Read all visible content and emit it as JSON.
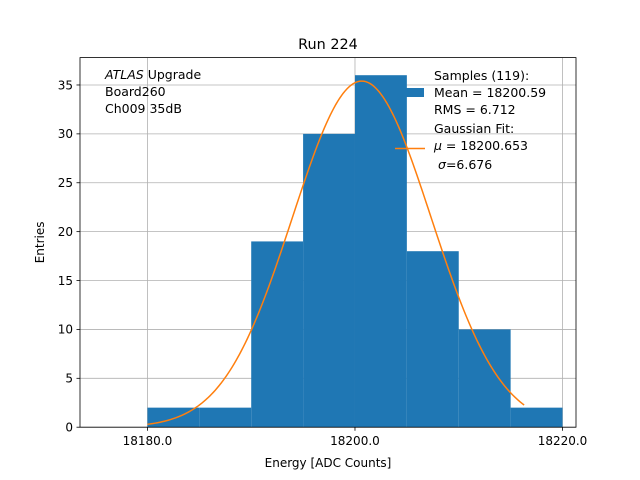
{
  "chart_data": {
    "type": "bar",
    "title": "Run 224",
    "xlabel": "Energy [ADC Counts]",
    "ylabel": "Entries",
    "xlim": [
      18173.5,
      18221.3
    ],
    "ylim": [
      0,
      37.8
    ],
    "x_ticks": [
      18180,
      18200,
      18220
    ],
    "x_tick_labels": [
      "18180.0",
      "18200.0",
      "18220.0"
    ],
    "y_ticks": [
      0,
      5,
      10,
      15,
      20,
      25,
      30,
      35
    ],
    "y_tick_labels": [
      "0",
      "5",
      "10",
      "15",
      "20",
      "25",
      "30",
      "35"
    ],
    "grid": true,
    "bins": [
      {
        "x0": 18180,
        "x1": 18185,
        "value": 2
      },
      {
        "x0": 18185,
        "x1": 18190,
        "value": 2
      },
      {
        "x0": 18190,
        "x1": 18195,
        "value": 19
      },
      {
        "x0": 18195,
        "x1": 18200,
        "value": 30
      },
      {
        "x0": 18200,
        "x1": 18205,
        "value": 36
      },
      {
        "x0": 18205,
        "x1": 18210,
        "value": 18
      },
      {
        "x0": 18210,
        "x1": 18215,
        "value": 10
      },
      {
        "x0": 18215,
        "x1": 18220,
        "value": 2
      }
    ],
    "fit": {
      "mu": 18200.653,
      "sigma": 6.676,
      "amplitude": 35.4,
      "x_start": 18180,
      "x_end": 18216.3
    },
    "colors": {
      "histogram": "#1f77b4",
      "fit": "#ff7f0e",
      "grid": "#b0b0b0"
    },
    "annotation": {
      "experiment": "ATLAS",
      "experiment_suffix": " Upgrade",
      "board": " Board260",
      "channel": " Ch009 35dB"
    },
    "legend": {
      "placement": "top-right",
      "samples_header": "Samples (119):",
      "samples_mean": " Mean = 18200.59",
      "samples_rms": " RMS = 6.712",
      "fit_header": "Gaussian Fit:",
      "fit_mu_symbol": "μ",
      "fit_mu_value": " = 18200.653",
      "fit_sigma_symbol": "σ",
      "fit_sigma_value": "=6.676"
    }
  }
}
